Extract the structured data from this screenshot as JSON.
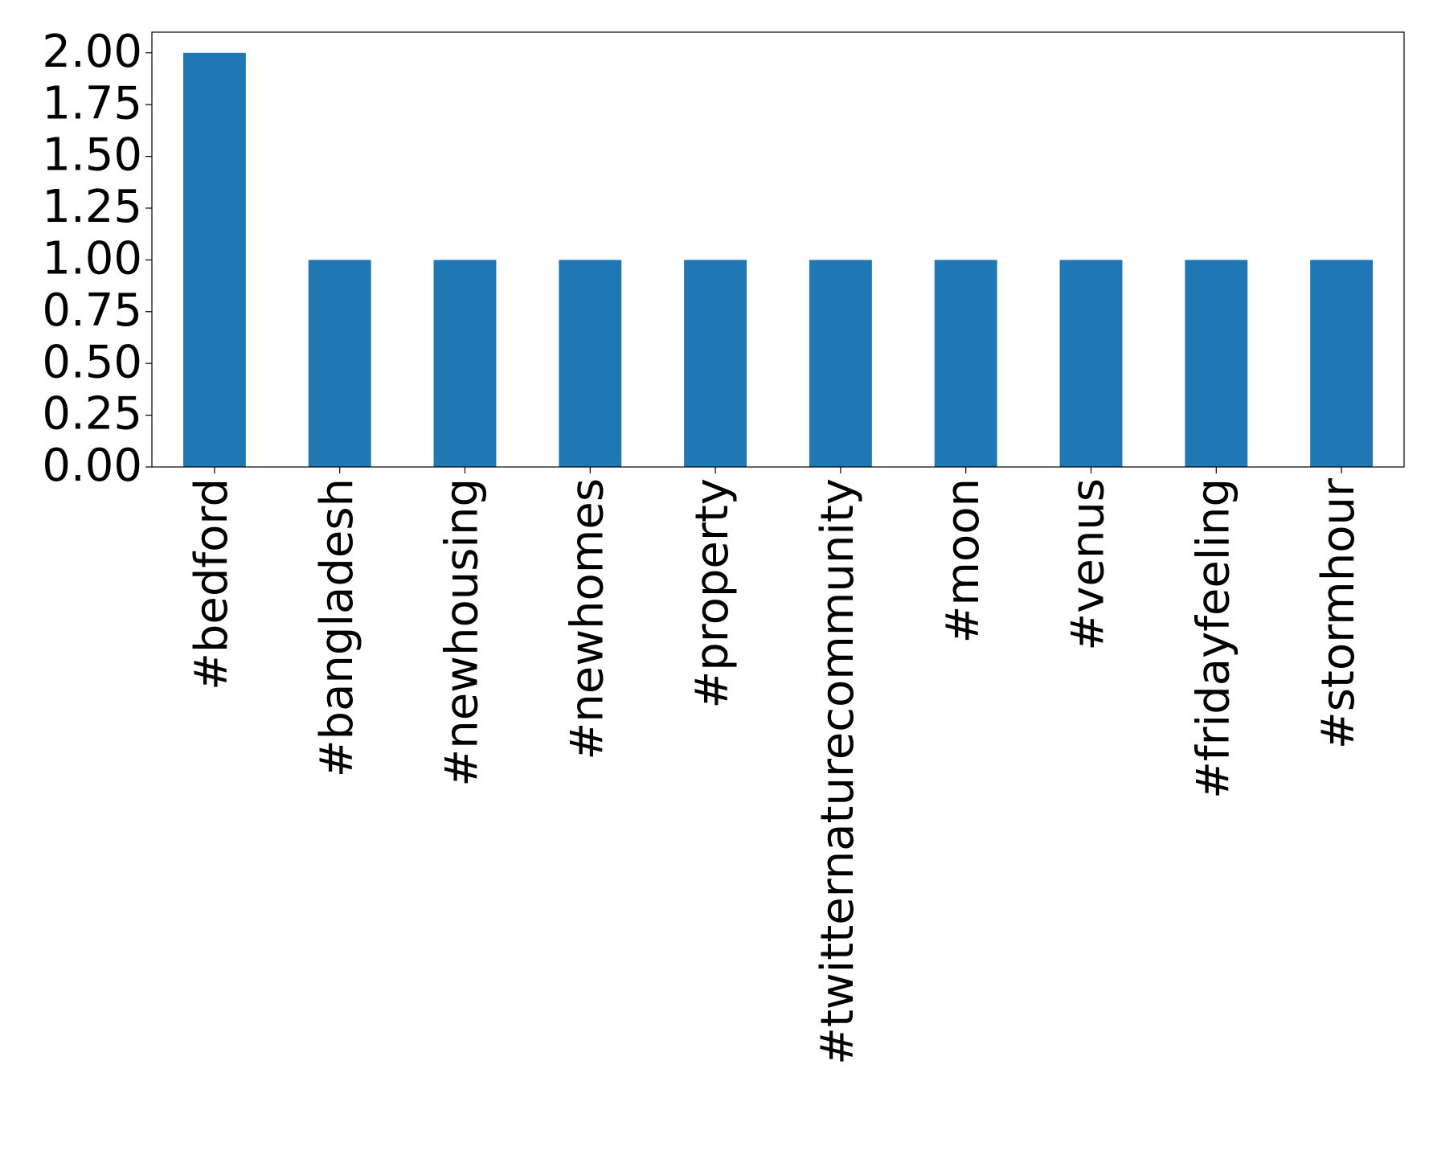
{
  "chart_data": {
    "type": "bar",
    "categories": [
      "#bedford",
      "#bangladesh",
      "#newhousing",
      "#newhomes",
      "#property",
      "#twitternaturecommunity",
      "#moon",
      "#venus",
      "#fridayfeeling",
      "#stormhour"
    ],
    "values": [
      2,
      1,
      1,
      1,
      1,
      1,
      1,
      1,
      1,
      1
    ],
    "color": "#1f77b4",
    "ylim": [
      0,
      2.1
    ],
    "yticks": [
      {
        "value": 0,
        "label": "0.00"
      },
      {
        "value": 0.25,
        "label": "0.25"
      },
      {
        "value": 0.5,
        "label": "0.50"
      },
      {
        "value": 0.75,
        "label": "0.75"
      },
      {
        "value": 1,
        "label": "1.00"
      },
      {
        "value": 1.25,
        "label": "1.25"
      },
      {
        "value": 1.5,
        "label": "1.50"
      },
      {
        "value": 1.75,
        "label": "1.75"
      },
      {
        "value": 2,
        "label": "2.00"
      }
    ],
    "grid": false
  }
}
